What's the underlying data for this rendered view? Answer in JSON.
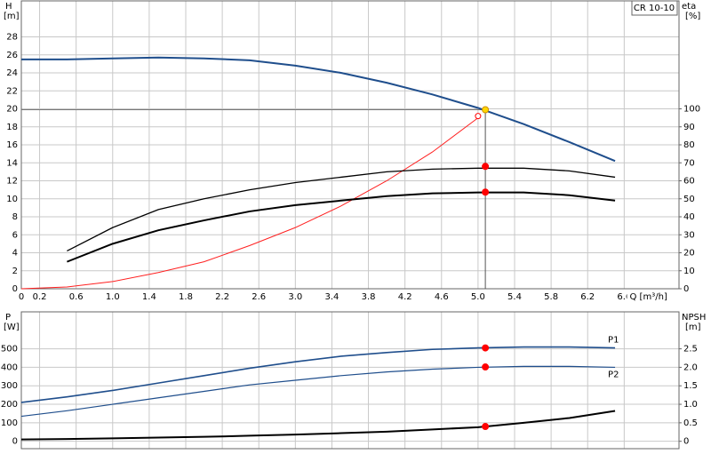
{
  "chart_data": [
    {
      "type": "line",
      "model": "CR 10-10",
      "y_label": "H",
      "y_unit": "[m]",
      "y2_label": "eta",
      "y2_unit": "[%]",
      "x_label": "Q [m³/h]",
      "xlim": [
        0,
        7.2
      ],
      "xticks": [
        0,
        0.2,
        0.6,
        {
          "value": 1,
          "label": "1.0"
        },
        1.4,
        1.8,
        2.2,
        2.6,
        {
          "value": 3,
          "label": "3.0"
        },
        3.4,
        3.8,
        4.2,
        4.6,
        {
          "value": 5,
          "label": "5.0"
        },
        5.4,
        5.8,
        6.2,
        6.6
      ],
      "ylim": [
        0,
        32
      ],
      "yticks": [
        0,
        2,
        4,
        6,
        8,
        10,
        12,
        14,
        16,
        18,
        20,
        22,
        24,
        26,
        28
      ],
      "y2lim": [
        0,
        160
      ],
      "y2ticks": [
        0,
        10,
        20,
        30,
        40,
        50,
        60,
        70,
        80,
        90,
        100
      ],
      "grid": true,
      "x": [
        0,
        0.5,
        1,
        1.5,
        2,
        2.5,
        3,
        3.5,
        4,
        4.5,
        5,
        5.5,
        6,
        6.5
      ],
      "series": [
        {
          "color": "#1f4e8c",
          "width": 2,
          "values": [
            25.5,
            25.5,
            25.6,
            25.7,
            25.6,
            25.4,
            24.8,
            24.0,
            22.9,
            21.6,
            20.1,
            18.3,
            16.3,
            14.2
          ]
        },
        {
          "color": "#ff2020",
          "width": 1,
          "axis": "y2",
          "values": [
            0,
            1,
            4,
            9,
            15,
            24,
            34,
            46,
            60,
            76,
            95,
            null,
            null,
            null
          ]
        },
        {
          "color": "#000000",
          "width": 1.3,
          "axis": "y2",
          "values": [
            null,
            21,
            34,
            44,
            50,
            55,
            59,
            62,
            65,
            66.5,
            67,
            67,
            65.5,
            62
          ]
        },
        {
          "color": "#000000",
          "width": 2,
          "axis": "y2",
          "values": [
            null,
            15,
            25,
            32.5,
            38,
            43,
            46.5,
            49,
            51.5,
            53,
            53.5,
            53.5,
            52,
            49
          ]
        }
      ],
      "markers": [
        {
          "x": 5.08,
          "y": 19.9,
          "color": "#ffd700"
        },
        {
          "x": 5.08,
          "y": 68,
          "axis": "y2",
          "color": "#ff0000"
        },
        {
          "x": 5.08,
          "y": 53.7,
          "axis": "y2",
          "color": "#ff0000"
        },
        {
          "x": 5.0,
          "y": 96,
          "axis": "y2",
          "color": "#ff0000",
          "hollow": true
        }
      ]
    },
    {
      "type": "line",
      "y_label": "P",
      "y_unit": "[W]",
      "y2_label": "NPSH",
      "y2_unit": "[m]",
      "xlim": [
        0,
        7.2
      ],
      "ylim": [
        -40,
        700
      ],
      "yticks": [
        0,
        100,
        200,
        300,
        400,
        500
      ],
      "y2lim": [
        -0.2,
        3.5
      ],
      "y2ticks": [
        0,
        0.5,
        {
          "value": 1,
          "label": "1.0"
        },
        1.5,
        {
          "value": 2,
          "label": "2.0"
        },
        2.5
      ],
      "grid": true,
      "x": [
        0,
        0.5,
        1,
        1.5,
        2,
        2.5,
        3,
        3.5,
        4,
        4.5,
        5,
        5.5,
        6,
        6.5
      ],
      "series": [
        {
          "name": "P1",
          "color": "#1f4e8c",
          "width": 1.6,
          "values": [
            210,
            240,
            275,
            315,
            355,
            395,
            430,
            460,
            480,
            497,
            505,
            510,
            510,
            505
          ]
        },
        {
          "name": "P2",
          "color": "#1f4e8c",
          "width": 1.2,
          "values": [
            135,
            165,
            200,
            235,
            270,
            305,
            330,
            355,
            375,
            390,
            400,
            405,
            405,
            400
          ]
        },
        {
          "color": "#000000",
          "width": 2,
          "axis": "y2",
          "values": [
            0.05,
            0.06,
            0.08,
            0.1,
            0.12,
            0.15,
            0.18,
            0.22,
            0.26,
            0.32,
            0.38,
            0.5,
            0.63,
            0.82
          ]
        }
      ],
      "markers": [
        {
          "x": 5.08,
          "y": 505,
          "color": "#ff0000"
        },
        {
          "x": 5.08,
          "y": 402,
          "color": "#ff0000"
        },
        {
          "x": 5.08,
          "y": 0.4,
          "axis": "y2",
          "color": "#ff0000"
        }
      ]
    }
  ]
}
